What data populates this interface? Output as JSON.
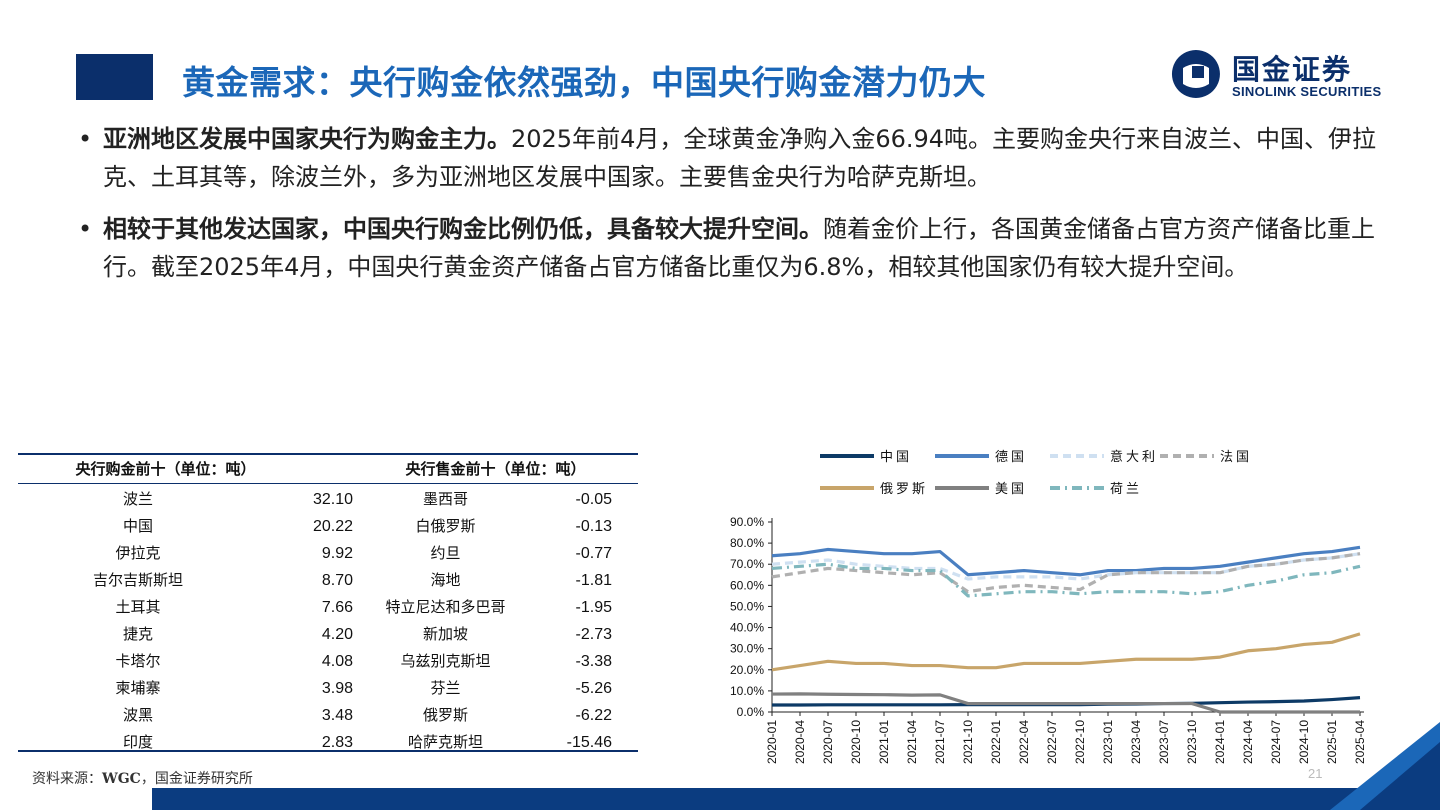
{
  "header": {
    "title": "黄金需求：央行购金依然强劲，中国央行购金潜力仍大",
    "logo_cn": "国金证券",
    "logo_en": "SINOLINK SECURITIES"
  },
  "bullets": [
    {
      "bold": "亚洲地区发展中国家央行为购金主力。",
      "text": "2025年前4月，全球黄金净购入金66.94吨。主要购金央行来自波兰、中国、伊拉克、土耳其等，除波兰外，多为亚洲地区发展中国家。主要售金央行为哈萨克斯坦。"
    },
    {
      "bold": "相较于其他发达国家，中国央行购金比例仍低，具备较大提升空间。",
      "text": "随着金价上行，各国黄金储备占官方资产储备比重上行。截至2025年4月，中国央行黄金资产储备占官方储备比重仅为6.8%，相较其他国家仍有较大提升空间。"
    }
  ],
  "table": {
    "buy_header": "央行购金前十（单位：吨）",
    "sell_header": "央行售金前十（单位：吨）",
    "rows": [
      {
        "buyer": "波兰",
        "buy": "32.10",
        "seller": "墨西哥",
        "sell": "-0.05"
      },
      {
        "buyer": "中国",
        "buy": "20.22",
        "seller": "白俄罗斯",
        "sell": "-0.13"
      },
      {
        "buyer": "伊拉克",
        "buy": "9.92",
        "seller": "约旦",
        "sell": "-0.77"
      },
      {
        "buyer": "吉尔吉斯斯坦",
        "buy": "8.70",
        "seller": "海地",
        "sell": "-1.81"
      },
      {
        "buyer": "土耳其",
        "buy": "7.66",
        "seller": "特立尼达和多巴哥",
        "sell": "-1.95"
      },
      {
        "buyer": "捷克",
        "buy": "4.20",
        "seller": "新加坡",
        "sell": "-2.73"
      },
      {
        "buyer": "卡塔尔",
        "buy": "4.08",
        "seller": "乌兹别克斯坦",
        "sell": "-3.38"
      },
      {
        "buyer": "柬埔寨",
        "buy": "3.98",
        "seller": "芬兰",
        "sell": "-5.26"
      },
      {
        "buyer": "波黑",
        "buy": "3.48",
        "seller": "俄罗斯",
        "sell": "-6.22"
      },
      {
        "buyer": "印度",
        "buy": "2.83",
        "seller": "哈萨克斯坦",
        "sell": "-15.46"
      }
    ]
  },
  "source": {
    "prefix": "资料来源：",
    "bold": "WGC",
    "suffix": "，国金证券研究所"
  },
  "page_number": "21",
  "colors": {
    "brand_dark": "#0b2f6b",
    "title_blue": "#1b67b8"
  },
  "chart_data": {
    "type": "line",
    "x": [
      "2020-01",
      "2020-04",
      "2020-07",
      "2020-10",
      "2021-01",
      "2021-04",
      "2021-07",
      "2021-10",
      "2022-01",
      "2022-04",
      "2022-07",
      "2022-10",
      "2023-01",
      "2023-04",
      "2023-07",
      "2023-10",
      "2024-01",
      "2024-04",
      "2024-07",
      "2024-10",
      "2025-01",
      "2025-04"
    ],
    "yticks": [
      "0.0%",
      "10.0%",
      "20.0%",
      "30.0%",
      "40.0%",
      "50.0%",
      "60.0%",
      "70.0%",
      "80.0%",
      "90.0%"
    ],
    "ylim": [
      0,
      90
    ],
    "legend_position": "top",
    "series": [
      {
        "name": "中国",
        "color": "#0d3a66",
        "style": "solid",
        "values": [
          3.3,
          3.3,
          3.4,
          3.4,
          3.4,
          3.4,
          3.4,
          3.5,
          3.5,
          3.5,
          3.5,
          3.5,
          3.7,
          3.8,
          4.0,
          4.1,
          4.4,
          4.7,
          4.9,
          5.2,
          5.9,
          6.8
        ]
      },
      {
        "name": "德国",
        "color": "#4a7fc1",
        "style": "solid",
        "values": [
          74,
          75,
          77,
          76,
          75,
          75,
          76,
          65,
          66,
          67,
          66,
          65,
          67,
          67,
          68,
          68,
          69,
          71,
          73,
          75,
          76,
          78
        ]
      },
      {
        "name": "意大利",
        "color": "#cfe0f1",
        "style": "dash",
        "values": [
          70,
          71,
          72,
          70,
          69,
          68,
          68,
          63,
          64,
          64,
          64,
          63,
          65,
          66,
          66,
          66,
          66,
          69,
          70,
          72,
          73,
          75
        ]
      },
      {
        "name": "法国",
        "color": "#b0b0b0",
        "style": "dash",
        "values": [
          64,
          66,
          68,
          67,
          66,
          65,
          66,
          57,
          59,
          60,
          59,
          58,
          65,
          66,
          66,
          66,
          66,
          69,
          70,
          72,
          73,
          75
        ]
      },
      {
        "name": "俄罗斯",
        "color": "#c8a56a",
        "style": "solid",
        "values": [
          20,
          22,
          24,
          23,
          23,
          22,
          22,
          21,
          21,
          23,
          23,
          23,
          24,
          25,
          25,
          25,
          26,
          29,
          30,
          32,
          33,
          37
        ]
      },
      {
        "name": "美国",
        "color": "#808080",
        "style": "solid",
        "values": [
          8.5,
          8.6,
          8.4,
          8.3,
          8.2,
          8.0,
          8.1,
          4.0,
          4.0,
          4.0,
          4.0,
          4.0,
          4.0,
          4.0,
          4.0,
          4.0,
          0.0,
          0.0,
          0.0,
          0.0,
          0.0,
          0.0
        ]
      },
      {
        "name": "荷兰",
        "color": "#7fb7bd",
        "style": "dashdot",
        "values": [
          68,
          69,
          70,
          68,
          68,
          67,
          67,
          55,
          56,
          57,
          57,
          56,
          57,
          57,
          57,
          56,
          57,
          60,
          62,
          65,
          66,
          69
        ]
      }
    ]
  }
}
